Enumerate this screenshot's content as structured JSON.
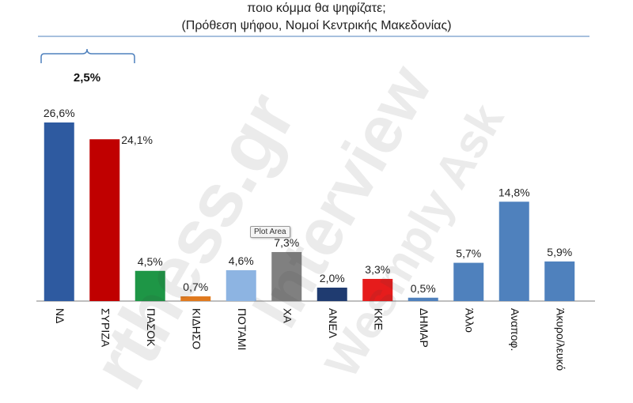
{
  "header": {
    "title_line1": "ποιο κόμμα θα ψηφίζατε;",
    "title_line2": "(Πρόθεση ψήφου, Νομοί Κεντρικής Μακεδονίας)"
  },
  "annotation": {
    "gap_label": "2,5%"
  },
  "tooltip": {
    "label": "Plot Area"
  },
  "watermarks": [
    "rthess.gr",
    "Interview",
    "Wesmply Ask"
  ],
  "chart_data": {
    "type": "bar",
    "title": "ποιο κόμμα θα ψηφίζατε;",
    "subtitle": "(Πρόθεση ψήφου, Νομοί Κεντρικής Μακεδονίας)",
    "categories": [
      "ΝΔ",
      "ΣΥΡΙΖΑ",
      "ΠΑΣΟΚ",
      "ΚΙΔΗΣΟ",
      "ΠΟΤΑΜΙ",
      "ΧΑ",
      "ΑΝΕΛ",
      "ΚΚΕ",
      "ΔΗΜΑΡ",
      "Άλλο",
      "Αναποφ.",
      "Άκυρο/λευκό"
    ],
    "values": [
      26.6,
      24.1,
      4.5,
      0.7,
      4.6,
      7.3,
      2.0,
      3.3,
      0.5,
      5.7,
      14.8,
      5.9
    ],
    "value_labels": [
      "26,6%",
      "24,1%",
      "4,5%",
      "0,7%",
      "4,6%",
      "7,3%",
      "2,0%",
      "3,3%",
      "0,5%",
      "5,7%",
      "14,8%",
      "5,9%"
    ],
    "colors": [
      "#2e5aa0",
      "#c00000",
      "#1e9646",
      "#e07a1f",
      "#8db4e2",
      "#808080",
      "#1f3b70",
      "#e61c1c",
      "#4f81bd",
      "#4f81bd",
      "#4f81bd",
      "#4f81bd"
    ],
    "ylim": [
      0,
      30
    ],
    "grid": false,
    "legend": "none",
    "xlabel": "",
    "ylabel": ""
  }
}
